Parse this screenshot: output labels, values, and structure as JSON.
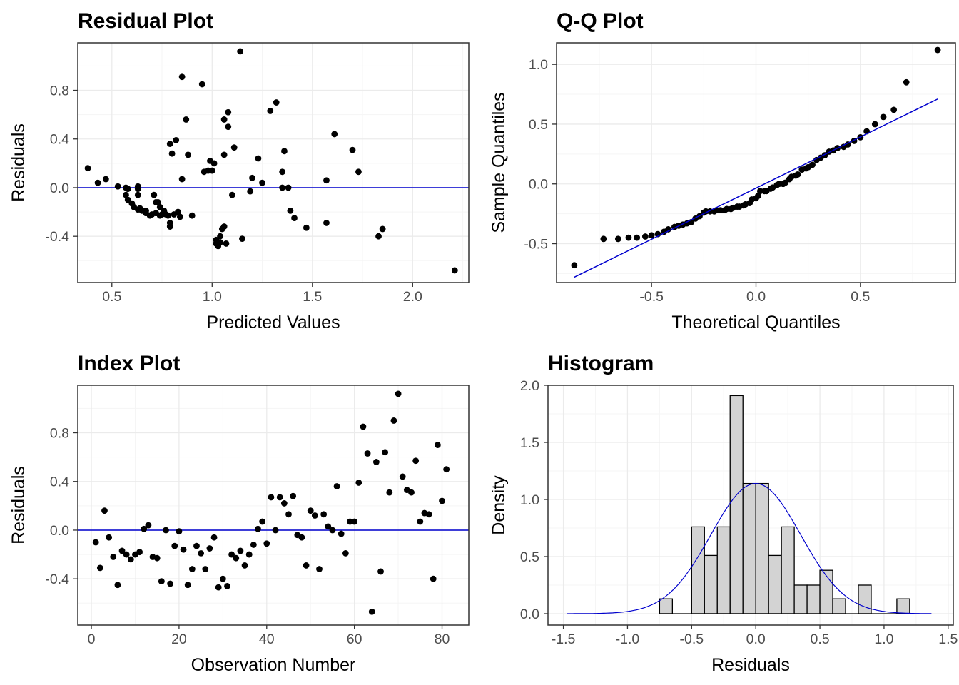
{
  "colors": {
    "line": "#0000CD",
    "point": "#000000",
    "bar_fill": "#D3D3D3",
    "panel_border": "#333333",
    "grid_major": "#EBEBEB",
    "grid_minor": "#F5F5F5",
    "tick_text": "#4D4D4D"
  },
  "chart_data": [
    {
      "id": "residual",
      "type": "scatter",
      "title": "Residual Plot",
      "xlabel": "Predicted Values",
      "ylabel": "Residuals",
      "xlim": [
        0.33,
        2.28
      ],
      "ylim": [
        -0.78,
        1.19
      ],
      "xticks": [
        0.5,
        1.0,
        1.5,
        2.0
      ],
      "xtick_labels": [
        "0.5",
        "1.0",
        "1.5",
        "2.0"
      ],
      "yticks": [
        -0.4,
        0.0,
        0.4,
        0.8
      ],
      "ytick_labels": [
        "-0.4",
        "0.0",
        "0.4",
        "0.8"
      ],
      "grid": true,
      "hline": 0,
      "points": [
        [
          0.38,
          0.16
        ],
        [
          0.43,
          0.04
        ],
        [
          0.47,
          0.07
        ],
        [
          0.53,
          0.01
        ],
        [
          0.57,
          -0.06
        ],
        [
          0.57,
          0.0
        ],
        [
          0.58,
          -0.1
        ],
        [
          0.58,
          -0.01
        ],
        [
          0.6,
          -0.13
        ],
        [
          0.61,
          -0.16
        ],
        [
          0.63,
          -0.18
        ],
        [
          0.63,
          -0.06
        ],
        [
          0.63,
          -0.01
        ],
        [
          0.63,
          0.01
        ],
        [
          0.64,
          -0.17
        ],
        [
          0.65,
          -0.19
        ],
        [
          0.67,
          -0.21
        ],
        [
          0.67,
          -0.19
        ],
        [
          0.69,
          -0.23
        ],
        [
          0.7,
          -0.22
        ],
        [
          0.71,
          -0.06
        ],
        [
          0.72,
          -0.12
        ],
        [
          0.72,
          -0.21
        ],
        [
          0.73,
          -0.12
        ],
        [
          0.74,
          -0.16
        ],
        [
          0.74,
          -0.23
        ],
        [
          0.75,
          -0.22
        ],
        [
          0.76,
          -0.19
        ],
        [
          0.77,
          -0.22
        ],
        [
          0.78,
          -0.23
        ],
        [
          0.79,
          -0.32
        ],
        [
          0.79,
          -0.29
        ],
        [
          0.79,
          0.36
        ],
        [
          0.8,
          0.28
        ],
        [
          0.81,
          -0.22
        ],
        [
          0.82,
          0.39
        ],
        [
          0.83,
          -0.2
        ],
        [
          0.84,
          -0.24
        ],
        [
          0.85,
          0.07
        ],
        [
          0.85,
          0.91
        ],
        [
          0.87,
          0.56
        ],
        [
          0.88,
          0.27
        ],
        [
          0.9,
          -0.23
        ],
        [
          0.95,
          0.85
        ],
        [
          0.96,
          0.13
        ],
        [
          0.98,
          0.14
        ],
        [
          0.99,
          0.22
        ],
        [
          1.0,
          0.14
        ],
        [
          1.01,
          0.2
        ],
        [
          1.02,
          -0.43
        ],
        [
          1.02,
          -0.46
        ],
        [
          1.03,
          -0.48
        ],
        [
          1.04,
          -0.45
        ],
        [
          1.04,
          -0.4
        ],
        [
          1.05,
          -0.34
        ],
        [
          1.06,
          -0.32
        ],
        [
          1.06,
          0.27
        ],
        [
          1.06,
          0.56
        ],
        [
          1.07,
          -0.46
        ],
        [
          1.08,
          0.5
        ],
        [
          1.08,
          0.62
        ],
        [
          1.1,
          -0.06
        ],
        [
          1.11,
          0.33
        ],
        [
          1.14,
          1.12
        ],
        [
          1.15,
          -0.42
        ],
        [
          1.19,
          -0.03
        ],
        [
          1.2,
          0.08
        ],
        [
          1.23,
          0.24
        ],
        [
          1.25,
          0.04
        ],
        [
          1.29,
          0.63
        ],
        [
          1.32,
          0.7
        ],
        [
          1.35,
          0.0
        ],
        [
          1.35,
          0.13
        ],
        [
          1.36,
          0.3
        ],
        [
          1.38,
          0.0
        ],
        [
          1.39,
          -0.19
        ],
        [
          1.41,
          -0.25
        ],
        [
          1.47,
          -0.33
        ],
        [
          1.57,
          0.06
        ],
        [
          1.57,
          -0.29
        ],
        [
          1.61,
          0.44
        ],
        [
          1.7,
          0.31
        ],
        [
          1.73,
          0.13
        ],
        [
          1.83,
          -0.4
        ],
        [
          1.85,
          -0.34
        ],
        [
          2.21,
          -0.68
        ]
      ]
    },
    {
      "id": "qq",
      "type": "scatter",
      "title": "Q-Q Plot",
      "xlabel": "Theoretical Quantiles",
      "ylabel": "Sample Quantiles",
      "xlim": [
        -0.955,
        0.955
      ],
      "ylim": [
        -0.825,
        1.18
      ],
      "xticks": [
        -0.5,
        0.0,
        0.5
      ],
      "xtick_labels": [
        "-0.5",
        "0.0",
        "0.5"
      ],
      "yticks": [
        -0.5,
        0.0,
        0.5,
        1.0
      ],
      "ytick_labels": [
        "-0.5",
        "0.0",
        "0.5",
        "1.0"
      ],
      "grid": true,
      "ref_line": [
        [
          -0.87,
          -0.78
        ],
        [
          0.87,
          0.71
        ]
      ],
      "points": [
        [
          -0.87,
          -0.68
        ],
        [
          -0.73,
          -0.46
        ],
        [
          -0.66,
          -0.46
        ],
        [
          -0.61,
          -0.45
        ],
        [
          -0.57,
          -0.45
        ],
        [
          -0.53,
          -0.44
        ],
        [
          -0.5,
          -0.43
        ],
        [
          -0.47,
          -0.42
        ],
        [
          -0.44,
          -0.4
        ],
        [
          -0.42,
          -0.38
        ],
        [
          -0.39,
          -0.36
        ],
        [
          -0.37,
          -0.35
        ],
        [
          -0.35,
          -0.34
        ],
        [
          -0.33,
          -0.33
        ],
        [
          -0.31,
          -0.32
        ],
        [
          -0.29,
          -0.29
        ],
        [
          -0.27,
          -0.27
        ],
        [
          -0.25,
          -0.24
        ],
        [
          -0.24,
          -0.23
        ],
        [
          -0.22,
          -0.23
        ],
        [
          -0.2,
          -0.23
        ],
        [
          -0.19,
          -0.22
        ],
        [
          -0.17,
          -0.22
        ],
        [
          -0.15,
          -0.22
        ],
        [
          -0.14,
          -0.21
        ],
        [
          -0.12,
          -0.21
        ],
        [
          -0.11,
          -0.2
        ],
        [
          -0.09,
          -0.19
        ],
        [
          -0.08,
          -0.19
        ],
        [
          -0.06,
          -0.18
        ],
        [
          -0.05,
          -0.17
        ],
        [
          -0.03,
          -0.16
        ],
        [
          -0.02,
          -0.13
        ],
        [
          0.0,
          -0.12
        ],
        [
          0.01,
          -0.1
        ],
        [
          0.02,
          -0.06
        ],
        [
          0.04,
          -0.06
        ],
        [
          0.05,
          -0.06
        ],
        [
          0.07,
          -0.04
        ],
        [
          0.08,
          -0.03
        ],
        [
          0.1,
          -0.01
        ],
        [
          0.11,
          0.0
        ],
        [
          0.13,
          0.0
        ],
        [
          0.14,
          0.01
        ],
        [
          0.16,
          0.04
        ],
        [
          0.17,
          0.06
        ],
        [
          0.19,
          0.07
        ],
        [
          0.2,
          0.08
        ],
        [
          0.22,
          0.12
        ],
        [
          0.24,
          0.13
        ],
        [
          0.25,
          0.14
        ],
        [
          0.27,
          0.16
        ],
        [
          0.29,
          0.2
        ],
        [
          0.31,
          0.22
        ],
        [
          0.33,
          0.24
        ],
        [
          0.35,
          0.27
        ],
        [
          0.37,
          0.28
        ],
        [
          0.39,
          0.3
        ],
        [
          0.42,
          0.31
        ],
        [
          0.44,
          0.33
        ],
        [
          0.47,
          0.36
        ],
        [
          0.5,
          0.39
        ],
        [
          0.53,
          0.44
        ],
        [
          0.57,
          0.5
        ],
        [
          0.61,
          0.56
        ],
        [
          0.66,
          0.62
        ],
        [
          0.72,
          0.85
        ],
        [
          0.87,
          1.12
        ]
      ]
    },
    {
      "id": "index",
      "type": "scatter",
      "title": "Index Plot",
      "xlabel": "Observation Number",
      "ylabel": "Residuals",
      "xlim": [
        -3.1,
        86.1
      ],
      "ylim": [
        -0.78,
        1.19
      ],
      "xticks": [
        0,
        20,
        40,
        60,
        80
      ],
      "xtick_labels": [
        "0",
        "20",
        "40",
        "60",
        "80"
      ],
      "yticks": [
        -0.4,
        0.0,
        0.4,
        0.8
      ],
      "ytick_labels": [
        "-0.4",
        "0.0",
        "0.4",
        "0.8"
      ],
      "grid": true,
      "hline": 0,
      "points": [
        [
          1,
          -0.1
        ],
        [
          2,
          -0.31
        ],
        [
          3,
          0.16
        ],
        [
          4,
          -0.06
        ],
        [
          5,
          -0.22
        ],
        [
          6,
          -0.45
        ],
        [
          7,
          -0.17
        ],
        [
          8,
          -0.2
        ],
        [
          9,
          -0.24
        ],
        [
          10,
          -0.2
        ],
        [
          11,
          -0.18
        ],
        [
          12,
          0.01
        ],
        [
          13,
          0.04
        ],
        [
          14,
          -0.22
        ],
        [
          15,
          -0.23
        ],
        [
          16,
          -0.42
        ],
        [
          17,
          0.0
        ],
        [
          18,
          -0.44
        ],
        [
          19,
          -0.13
        ],
        [
          20,
          -0.01
        ],
        [
          21,
          -0.16
        ],
        [
          22,
          -0.45
        ],
        [
          23,
          -0.32
        ],
        [
          24,
          -0.13
        ],
        [
          25,
          -0.19
        ],
        [
          26,
          -0.32
        ],
        [
          27,
          -0.15
        ],
        [
          28,
          -0.06
        ],
        [
          29,
          -0.47
        ],
        [
          30,
          -0.4
        ],
        [
          31,
          -0.46
        ],
        [
          32,
          -0.2
        ],
        [
          33,
          -0.23
        ],
        [
          34,
          -0.17
        ],
        [
          35,
          -0.29
        ],
        [
          36,
          -0.2
        ],
        [
          37,
          -0.12
        ],
        [
          38,
          0.01
        ],
        [
          39,
          0.07
        ],
        [
          40,
          -0.11
        ],
        [
          41,
          0.27
        ],
        [
          42,
          0.0
        ],
        [
          43,
          0.27
        ],
        [
          44,
          0.22
        ],
        [
          45,
          0.13
        ],
        [
          46,
          0.28
        ],
        [
          47,
          -0.04
        ],
        [
          48,
          -0.06
        ],
        [
          49,
          -0.29
        ],
        [
          50,
          0.16
        ],
        [
          51,
          0.12
        ],
        [
          52,
          -0.32
        ],
        [
          53,
          0.13
        ],
        [
          54,
          0.03
        ],
        [
          55,
          0.0
        ],
        [
          56,
          0.36
        ],
        [
          57,
          -0.03
        ],
        [
          58,
          -0.19
        ],
        [
          59,
          0.07
        ],
        [
          60,
          0.07
        ],
        [
          61,
          0.39
        ],
        [
          62,
          0.85
        ],
        [
          63,
          0.63
        ],
        [
          64,
          -0.67
        ],
        [
          65,
          0.56
        ],
        [
          66,
          -0.34
        ],
        [
          67,
          0.64
        ],
        [
          68,
          0.31
        ],
        [
          69,
          0.9
        ],
        [
          70,
          1.12
        ],
        [
          71,
          0.44
        ],
        [
          72,
          0.33
        ],
        [
          73,
          0.31
        ],
        [
          74,
          0.57
        ],
        [
          75,
          0.07
        ],
        [
          76,
          0.14
        ],
        [
          77,
          0.13
        ],
        [
          78,
          -0.4
        ],
        [
          79,
          0.7
        ],
        [
          80,
          0.24
        ],
        [
          81,
          0.5
        ]
      ]
    },
    {
      "id": "hist",
      "type": "bar",
      "title": "Histogram",
      "xlabel": "Residuals",
      "ylabel": "Density",
      "xlim": [
        -1.62,
        1.54
      ],
      "ylim": [
        -0.1,
        2.0
      ],
      "xticks": [
        -1.5,
        -1.0,
        -0.5,
        0.0,
        0.5,
        1.0,
        1.5
      ],
      "xtick_labels": [
        "-1.5",
        "-1.0",
        "-0.5",
        "0.0",
        "0.5",
        "1.0",
        "1.5"
      ],
      "yticks": [
        0.0,
        0.5,
        1.0,
        1.5,
        2.0
      ],
      "ytick_labels": [
        "0.0",
        "0.5",
        "1.0",
        "1.5",
        "2.0"
      ],
      "grid": true,
      "bin_width": 0.1,
      "bins": [
        [
          -0.75,
          0.13
        ],
        [
          -0.65,
          0
        ],
        [
          -0.55,
          0
        ],
        [
          -0.5,
          0.76
        ],
        [
          -0.4,
          0.51
        ],
        [
          -0.3,
          0.76
        ],
        [
          -0.2,
          1.91
        ],
        [
          -0.1,
          1.14
        ],
        [
          0.0,
          1.14
        ],
        [
          0.1,
          0.51
        ],
        [
          0.2,
          0.76
        ],
        [
          0.3,
          0.25
        ],
        [
          0.4,
          0.25
        ],
        [
          0.5,
          0.38
        ],
        [
          0.6,
          0.13
        ],
        [
          0.7,
          0
        ],
        [
          0.8,
          0.25
        ],
        [
          0.9,
          0
        ],
        [
          1.0,
          0
        ],
        [
          1.1,
          0.13
        ]
      ],
      "density_curve": {
        "mean": 0.0,
        "sd": 0.35,
        "peak": 1.14,
        "range": [
          -1.47,
          1.37
        ]
      }
    }
  ]
}
